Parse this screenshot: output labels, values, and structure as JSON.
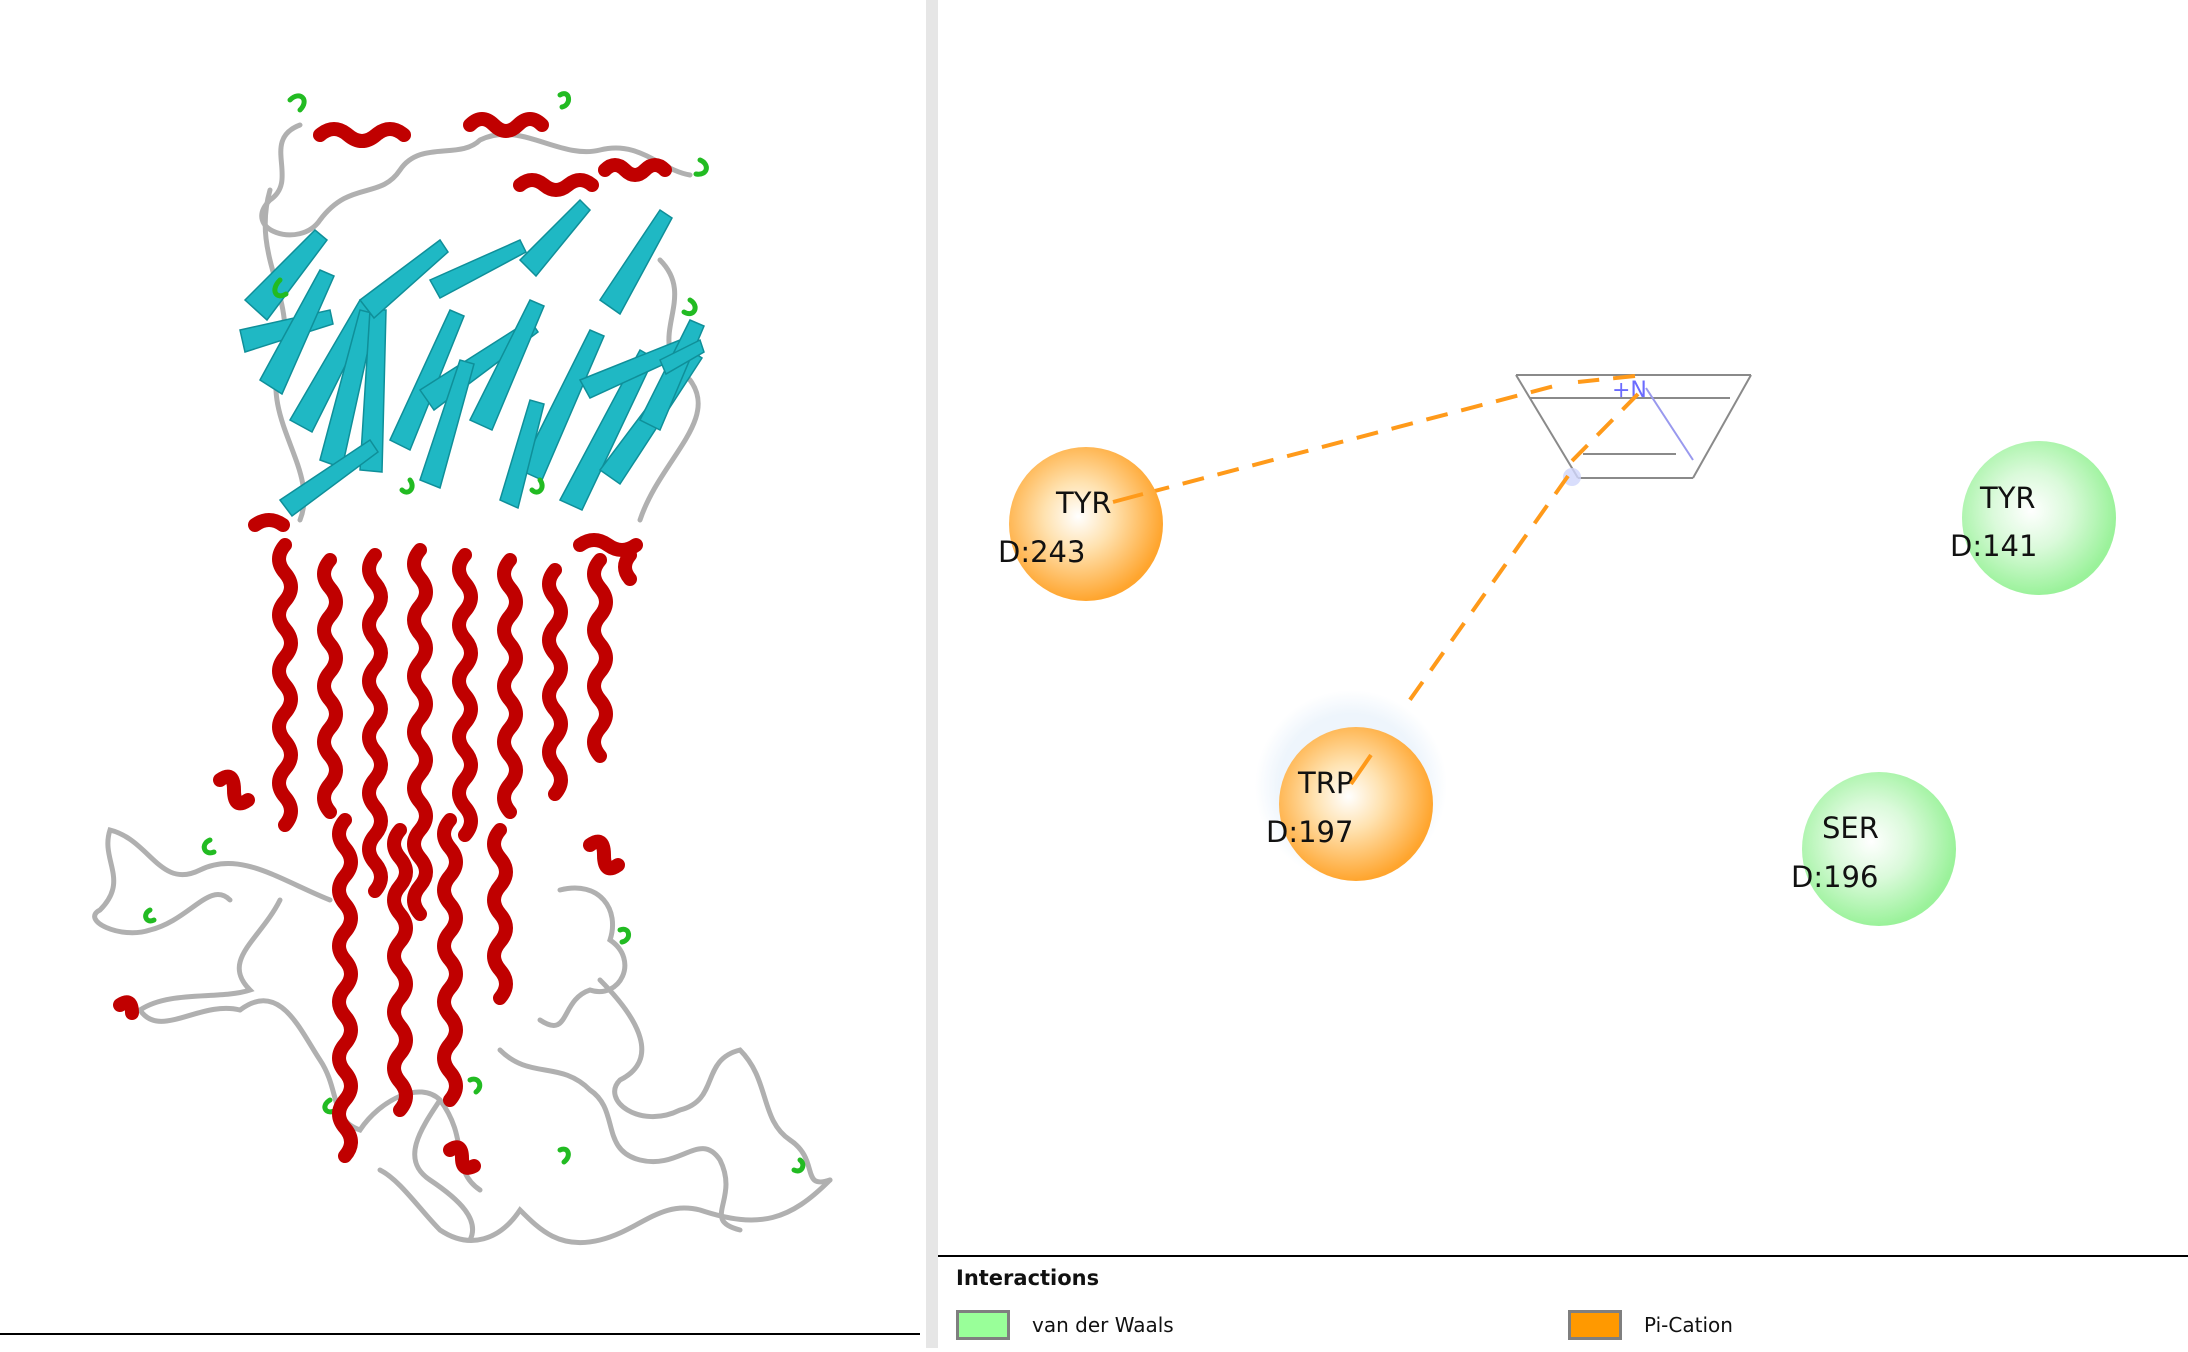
{
  "legend": {
    "title": "Interactions",
    "items": [
      {
        "label": "van der Waals",
        "color": "#99ff99"
      },
      {
        "label": "Pi-Cation",
        "color": "#ff9900"
      }
    ]
  },
  "residues": [
    {
      "name": "TYR",
      "id": "D:243",
      "interaction": "Pi-Cation",
      "color": "#ffa52e"
    },
    {
      "name": "TRP",
      "id": "D:197",
      "interaction": "Pi-Cation",
      "color": "#ffa52e"
    },
    {
      "name": "TYR",
      "id": "D:141",
      "interaction": "van der Waals",
      "color": "#9af29a"
    },
    {
      "name": "SER",
      "id": "D:196",
      "interaction": "van der Waals",
      "color": "#9af29a"
    }
  ],
  "ligand": {
    "atom_label": "+N"
  },
  "protein_colors": {
    "helix": "#c00000",
    "sheet": "#1fb8c4",
    "turn": "#22bb22",
    "coil": "#b8b8b8"
  }
}
